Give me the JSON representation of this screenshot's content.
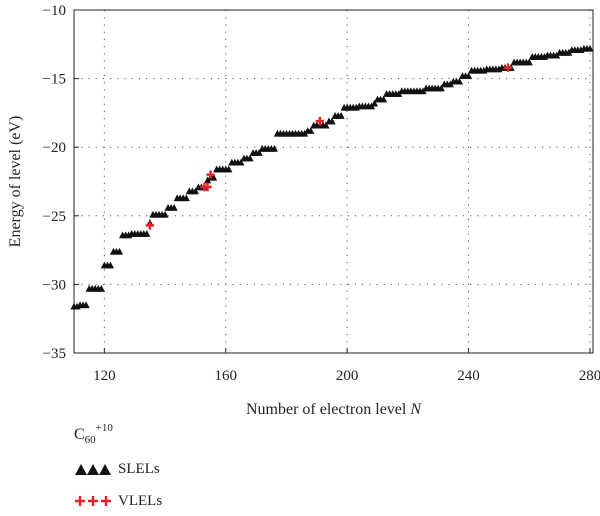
{
  "chart_data": {
    "type": "scatter",
    "xlabel": "Number of electron level",
    "xlabel_var": "N",
    "ylabel": "Energy of level (eV)",
    "xlim": [
      110,
      281
    ],
    "ylim": [
      -35,
      -10
    ],
    "xticks": [
      120,
      160,
      200,
      240,
      280
    ],
    "yticks": [
      -10,
      -15,
      -20,
      -25,
      -30,
      -35
    ],
    "grid": "dotted",
    "legend_title": {
      "base": "C",
      "sub": "60",
      "sup": "+10"
    },
    "series": [
      {
        "name": "SLELs",
        "marker": "triangle",
        "color": "#111111",
        "points": [
          [
            110,
            -31.6
          ],
          [
            111,
            -31.6
          ],
          [
            112,
            -31.5
          ],
          [
            113,
            -31.5
          ],
          [
            114,
            -31.5
          ],
          [
            115,
            -30.3
          ],
          [
            116,
            -30.3
          ],
          [
            117,
            -30.3
          ],
          [
            118,
            -30.3
          ],
          [
            119,
            -30.3
          ],
          [
            120,
            -28.6
          ],
          [
            121,
            -28.6
          ],
          [
            122,
            -28.6
          ],
          [
            123,
            -27.6
          ],
          [
            124,
            -27.6
          ],
          [
            125,
            -27.6
          ],
          [
            126,
            -26.4
          ],
          [
            127,
            -26.4
          ],
          [
            128,
            -26.4
          ],
          [
            129,
            -26.3
          ],
          [
            130,
            -26.3
          ],
          [
            131,
            -26.3
          ],
          [
            132,
            -26.3
          ],
          [
            133,
            -26.3
          ],
          [
            134,
            -26.3
          ],
          [
            135,
            -25.5
          ],
          [
            136,
            -24.9
          ],
          [
            137,
            -24.9
          ],
          [
            138,
            -24.9
          ],
          [
            139,
            -24.9
          ],
          [
            140,
            -24.9
          ],
          [
            141,
            -24.4
          ],
          [
            142,
            -24.4
          ],
          [
            143,
            -24.4
          ],
          [
            144,
            -23.7
          ],
          [
            145,
            -23.7
          ],
          [
            146,
            -23.7
          ],
          [
            147,
            -23.7
          ],
          [
            148,
            -23.2
          ],
          [
            149,
            -23.2
          ],
          [
            150,
            -23.2
          ],
          [
            151,
            -22.9
          ],
          [
            152,
            -22.9
          ],
          [
            153,
            -22.9
          ],
          [
            154,
            -22.4
          ],
          [
            155,
            -22.2
          ],
          [
            156,
            -22.2
          ],
          [
            157,
            -21.6
          ],
          [
            158,
            -21.6
          ],
          [
            159,
            -21.6
          ],
          [
            160,
            -21.6
          ],
          [
            161,
            -21.6
          ],
          [
            162,
            -21.1
          ],
          [
            163,
            -21.1
          ],
          [
            164,
            -21.1
          ],
          [
            165,
            -21.1
          ],
          [
            166,
            -20.8
          ],
          [
            167,
            -20.8
          ],
          [
            168,
            -20.8
          ],
          [
            169,
            -20.4
          ],
          [
            170,
            -20.4
          ],
          [
            171,
            -20.4
          ],
          [
            172,
            -20.1
          ],
          [
            173,
            -20.1
          ],
          [
            174,
            -20.1
          ],
          [
            175,
            -20.1
          ],
          [
            176,
            -20.1
          ],
          [
            177,
            -19.0
          ],
          [
            178,
            -19.0
          ],
          [
            179,
            -19.0
          ],
          [
            180,
            -19.0
          ],
          [
            181,
            -19.0
          ],
          [
            182,
            -19.0
          ],
          [
            183,
            -19.0
          ],
          [
            184,
            -19.0
          ],
          [
            185,
            -19.0
          ],
          [
            186,
            -19.0
          ],
          [
            187,
            -18.8
          ],
          [
            188,
            -18.8
          ],
          [
            189,
            -18.4
          ],
          [
            190,
            -18.4
          ],
          [
            191,
            -18.4
          ],
          [
            192,
            -18.4
          ],
          [
            193,
            -18.4
          ],
          [
            194,
            -18.1
          ],
          [
            195,
            -18.1
          ],
          [
            196,
            -17.7
          ],
          [
            197,
            -17.7
          ],
          [
            198,
            -17.7
          ],
          [
            199,
            -17.1
          ],
          [
            200,
            -17.1
          ],
          [
            201,
            -17.1
          ],
          [
            202,
            -17.1
          ],
          [
            203,
            -17.1
          ],
          [
            204,
            -17.0
          ],
          [
            205,
            -17.0
          ],
          [
            206,
            -17.0
          ],
          [
            207,
            -17.0
          ],
          [
            208,
            -17.0
          ],
          [
            209,
            -16.8
          ],
          [
            210,
            -16.5
          ],
          [
            211,
            -16.5
          ],
          [
            212,
            -16.5
          ],
          [
            213,
            -16.1
          ],
          [
            214,
            -16.1
          ],
          [
            215,
            -16.1
          ],
          [
            216,
            -16.1
          ],
          [
            217,
            -16.1
          ],
          [
            218,
            -15.9
          ],
          [
            219,
            -15.9
          ],
          [
            220,
            -15.9
          ],
          [
            221,
            -15.9
          ],
          [
            222,
            -15.9
          ],
          [
            223,
            -15.9
          ],
          [
            224,
            -15.9
          ],
          [
            225,
            -15.9
          ],
          [
            226,
            -15.7
          ],
          [
            227,
            -15.7
          ],
          [
            228,
            -15.7
          ],
          [
            229,
            -15.7
          ],
          [
            230,
            -15.7
          ],
          [
            231,
            -15.7
          ],
          [
            232,
            -15.4
          ],
          [
            233,
            -15.4
          ],
          [
            234,
            -15.4
          ],
          [
            235,
            -15.2
          ],
          [
            236,
            -15.2
          ],
          [
            237,
            -15.2
          ],
          [
            238,
            -14.8
          ],
          [
            239,
            -14.8
          ],
          [
            240,
            -14.8
          ],
          [
            241,
            -14.4
          ],
          [
            242,
            -14.4
          ],
          [
            243,
            -14.4
          ],
          [
            244,
            -14.4
          ],
          [
            245,
            -14.4
          ],
          [
            246,
            -14.3
          ],
          [
            247,
            -14.3
          ],
          [
            248,
            -14.3
          ],
          [
            249,
            -14.3
          ],
          [
            250,
            -14.3
          ],
          [
            251,
            -14.2
          ],
          [
            252,
            -14.2
          ],
          [
            253,
            -14.2
          ],
          [
            254,
            -14.2
          ],
          [
            255,
            -13.8
          ],
          [
            256,
            -13.8
          ],
          [
            257,
            -13.8
          ],
          [
            258,
            -13.8
          ],
          [
            259,
            -13.8
          ],
          [
            260,
            -13.8
          ],
          [
            261,
            -13.4
          ],
          [
            262,
            -13.4
          ],
          [
            263,
            -13.4
          ],
          [
            264,
            -13.4
          ],
          [
            265,
            -13.4
          ],
          [
            266,
            -13.3
          ],
          [
            267,
            -13.3
          ],
          [
            268,
            -13.3
          ],
          [
            269,
            -13.3
          ],
          [
            270,
            -13.1
          ],
          [
            271,
            -13.1
          ],
          [
            272,
            -13.1
          ],
          [
            273,
            -13.1
          ],
          [
            274,
            -12.9
          ],
          [
            275,
            -12.9
          ],
          [
            276,
            -12.9
          ],
          [
            277,
            -12.9
          ],
          [
            278,
            -12.8
          ],
          [
            279,
            -12.8
          ],
          [
            280,
            -12.8
          ]
        ]
      },
      {
        "name": "VLELs",
        "marker": "plus",
        "color": "#e8202a",
        "points": [
          [
            135,
            -25.7
          ],
          [
            153,
            -22.9
          ],
          [
            154,
            -22.9
          ],
          [
            155,
            -22.0
          ],
          [
            191,
            -18.1
          ],
          [
            253,
            -14.2
          ]
        ]
      }
    ]
  }
}
